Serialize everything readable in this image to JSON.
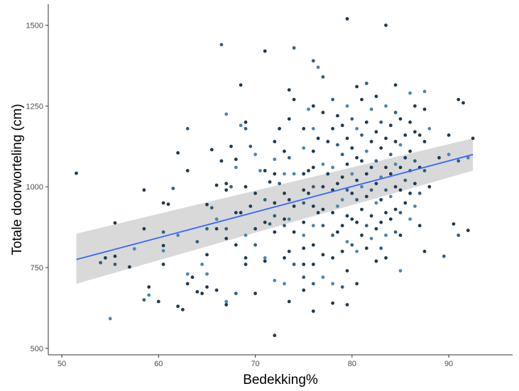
{
  "chart_data": {
    "type": "scatter",
    "title": "",
    "xlabel": "Bedekking%",
    "ylabel": "Totale doorworteling (cm)",
    "xlim": [
      48.6,
      96.6
    ],
    "ylim": [
      480,
      1565
    ],
    "x_ticks": [
      50,
      60,
      70,
      80,
      90
    ],
    "y_ticks": [
      500,
      750,
      1000,
      1250,
      1500
    ],
    "grid": false,
    "legend": "none",
    "colors": {
      "point_dark": "#1f3a4d",
      "point_mid": "#2f5f80",
      "point_light": "#4a86b0",
      "trend_line": "#3366ff",
      "confidence_band": "#d9d9d9",
      "axis": "#333333"
    },
    "trend": {
      "method": "linear",
      "x": [
        51.5,
        92.5
      ],
      "y": [
        775,
        1100
      ],
      "ci_lower": [
        700,
        1050
      ],
      "ci_upper": [
        855,
        1150
      ]
    },
    "points": [
      [
        51.5,
        1042
      ],
      [
        54,
        765
      ],
      [
        54.5,
        780
      ],
      [
        55,
        592
      ],
      [
        55.5,
        888
      ],
      [
        55.5,
        785
      ],
      [
        55.5,
        760
      ],
      [
        57,
        752
      ],
      [
        57.5,
        808
      ],
      [
        58.5,
        990
      ],
      [
        58.5,
        870
      ],
      [
        58.5,
        650
      ],
      [
        59,
        690
      ],
      [
        59,
        665
      ],
      [
        60,
        645
      ],
      [
        60.5,
        950
      ],
      [
        60.5,
        860
      ],
      [
        60.5,
        818
      ],
      [
        60.5,
        802
      ],
      [
        60.5,
        760
      ],
      [
        61,
        946
      ],
      [
        61.5,
        995
      ],
      [
        62,
        1105
      ],
      [
        62,
        850
      ],
      [
        62,
        630
      ],
      [
        62.5,
        620
      ],
      [
        63,
        1180
      ],
      [
        63,
        1050
      ],
      [
        63,
        730
      ],
      [
        63,
        700
      ],
      [
        63.5,
        720
      ],
      [
        64,
        830
      ],
      [
        64,
        675
      ],
      [
        64.5,
        760
      ],
      [
        64.5,
        670
      ],
      [
        65,
        945
      ],
      [
        65,
        870
      ],
      [
        65,
        790
      ],
      [
        65,
        730
      ],
      [
        65,
        690
      ],
      [
        65.5,
        1115
      ],
      [
        65.5,
        935
      ],
      [
        66,
        1005
      ],
      [
        66,
        900
      ],
      [
        66,
        870
      ],
      [
        66,
        680
      ],
      [
        66.5,
        1440
      ],
      [
        66.5,
        1080
      ],
      [
        67,
        1225
      ],
      [
        67,
        1010
      ],
      [
        67,
        990
      ],
      [
        67,
        870
      ],
      [
        67,
        840
      ],
      [
        67,
        645
      ],
      [
        67,
        635
      ],
      [
        67.5,
        1125
      ],
      [
        67.5,
        1000
      ],
      [
        68,
        1085
      ],
      [
        68,
        1060
      ],
      [
        68,
        920
      ],
      [
        68,
        820
      ],
      [
        68,
        670
      ],
      [
        68.5,
        1315
      ],
      [
        68.5,
        1190
      ],
      [
        68.5,
        920
      ],
      [
        69,
        1200
      ],
      [
        69,
        1180
      ],
      [
        69,
        1000
      ],
      [
        69,
        850
      ],
      [
        69,
        780
      ],
      [
        69,
        760
      ],
      [
        69.5,
        1125
      ],
      [
        69.5,
        940
      ],
      [
        70,
        1100
      ],
      [
        70,
        980
      ],
      [
        70,
        870
      ],
      [
        70,
        820
      ],
      [
        70,
        670
      ],
      [
        70.5,
        1050
      ],
      [
        71,
        1420
      ],
      [
        71,
        1050
      ],
      [
        71,
        960
      ],
      [
        71,
        890
      ],
      [
        71,
        780
      ],
      [
        71,
        770
      ],
      [
        71.5,
        1015
      ],
      [
        71.5,
        885
      ],
      [
        72,
        1140
      ],
      [
        72,
        1085
      ],
      [
        72,
        1040
      ],
      [
        72,
        950
      ],
      [
        72,
        910
      ],
      [
        72,
        860
      ],
      [
        72,
        710
      ],
      [
        72,
        540
      ],
      [
        72.5,
        1180
      ],
      [
        72.5,
        1010
      ],
      [
        73,
        1110
      ],
      [
        73,
        1040
      ],
      [
        73,
        980
      ],
      [
        73,
        900
      ],
      [
        73,
        880
      ],
      [
        73,
        780
      ],
      [
        73,
        700
      ],
      [
        73.5,
        1300
      ],
      [
        73.5,
        1210
      ],
      [
        73.5,
        1090
      ],
      [
        73.5,
        960
      ],
      [
        73.5,
        900
      ],
      [
        73.5,
        800
      ],
      [
        73.5,
        645
      ],
      [
        74,
        1430
      ],
      [
        74,
        1270
      ],
      [
        74,
        1040
      ],
      [
        74,
        940
      ],
      [
        74,
        860
      ],
      [
        74,
        760
      ],
      [
        75,
        1180
      ],
      [
        75,
        1120
      ],
      [
        75,
        1040
      ],
      [
        75,
        990
      ],
      [
        75,
        950
      ],
      [
        75,
        890
      ],
      [
        75,
        850
      ],
      [
        75,
        810
      ],
      [
        75,
        760
      ],
      [
        75,
        720
      ],
      [
        75,
        680
      ],
      [
        75.5,
        1240
      ],
      [
        75.5,
        1050
      ],
      [
        75.5,
        980
      ],
      [
        76,
        1390
      ],
      [
        76,
        1250
      ],
      [
        76,
        1180
      ],
      [
        76,
        1110
      ],
      [
        76,
        1060
      ],
      [
        76,
        1000
      ],
      [
        76,
        940
      ],
      [
        76,
        880
      ],
      [
        76,
        820
      ],
      [
        76,
        760
      ],
      [
        76,
        700
      ],
      [
        76,
        615
      ],
      [
        76.5,
        1370
      ],
      [
        76.5,
        1150
      ],
      [
        76.5,
        920
      ],
      [
        77,
        1340
      ],
      [
        77,
        1230
      ],
      [
        77,
        1070
      ],
      [
        77,
        1000
      ],
      [
        77,
        930
      ],
      [
        77,
        880
      ],
      [
        77,
        790
      ],
      [
        77,
        720
      ],
      [
        77.5,
        1140
      ],
      [
        77.5,
        1040
      ],
      [
        78,
        1270
      ],
      [
        78,
        1180
      ],
      [
        78,
        1060
      ],
      [
        78,
        990
      ],
      [
        78,
        920
      ],
      [
        78,
        850
      ],
      [
        78,
        780
      ],
      [
        78,
        700
      ],
      [
        78,
        640
      ],
      [
        78.5,
        1220
      ],
      [
        78.5,
        1130
      ],
      [
        78.5,
        1010
      ],
      [
        78.5,
        940
      ],
      [
        78.5,
        860
      ],
      [
        79,
        1190
      ],
      [
        79,
        1100
      ],
      [
        79,
        1030
      ],
      [
        79,
        960
      ],
      [
        79,
        880
      ],
      [
        79,
        800
      ],
      [
        79,
        690
      ],
      [
        79.5,
        1520
      ],
      [
        79.5,
        1250
      ],
      [
        79.5,
        1150
      ],
      [
        79.5,
        1070
      ],
      [
        79.5,
        990
      ],
      [
        79.5,
        910
      ],
      [
        79.5,
        830
      ],
      [
        79.5,
        740
      ],
      [
        79.5,
        635
      ],
      [
        80,
        1210
      ],
      [
        80,
        1120
      ],
      [
        80,
        1040
      ],
      [
        80,
        980
      ],
      [
        80,
        900
      ],
      [
        80,
        820
      ],
      [
        80.5,
        1310
      ],
      [
        80.5,
        1180
      ],
      [
        80.5,
        1090
      ],
      [
        80.5,
        1020
      ],
      [
        80.5,
        960
      ],
      [
        80.5,
        890
      ],
      [
        80.5,
        800
      ],
      [
        80.5,
        700
      ],
      [
        81,
        1270
      ],
      [
        81,
        1160
      ],
      [
        81,
        1080
      ],
      [
        81,
        1000
      ],
      [
        81,
        930
      ],
      [
        81,
        850
      ],
      [
        81.5,
        1320
      ],
      [
        81.5,
        1200
      ],
      [
        81.5,
        1110
      ],
      [
        81.5,
        1040
      ],
      [
        81.5,
        970
      ],
      [
        81.5,
        880
      ],
      [
        81.5,
        810
      ],
      [
        82,
        1240
      ],
      [
        82,
        1140
      ],
      [
        82,
        1060
      ],
      [
        82,
        990
      ],
      [
        82,
        910
      ],
      [
        82,
        840
      ],
      [
        82.5,
        1280
      ],
      [
        82.5,
        1170
      ],
      [
        82.5,
        1080
      ],
      [
        82.5,
        1010
      ],
      [
        82.5,
        950
      ],
      [
        82.5,
        870
      ],
      [
        82.5,
        770
      ],
      [
        83,
        1200
      ],
      [
        83,
        1120
      ],
      [
        83,
        1030
      ],
      [
        83,
        960
      ],
      [
        83,
        890
      ],
      [
        83,
        810
      ],
      [
        83.5,
        1500
      ],
      [
        83.5,
        1250
      ],
      [
        83.5,
        1150
      ],
      [
        83.5,
        1060
      ],
      [
        83.5,
        990
      ],
      [
        83.5,
        920
      ],
      [
        83.5,
        850
      ],
      [
        83.5,
        780
      ],
      [
        84,
        1190
      ],
      [
        84,
        1100
      ],
      [
        84,
        1040
      ],
      [
        84,
        970
      ],
      [
        84,
        900
      ],
      [
        84.5,
        1315
      ],
      [
        84.5,
        1230
      ],
      [
        84.5,
        1140
      ],
      [
        84.5,
        1070
      ],
      [
        84.5,
        1000
      ],
      [
        84.5,
        930
      ],
      [
        84.5,
        860
      ],
      [
        85,
        1210
      ],
      [
        85,
        1130
      ],
      [
        85,
        1060
      ],
      [
        85,
        990
      ],
      [
        85,
        920
      ],
      [
        85,
        850
      ],
      [
        85,
        740
      ],
      [
        85.5,
        1160
      ],
      [
        85.5,
        1090
      ],
      [
        85.5,
        1020
      ],
      [
        85.5,
        950
      ],
      [
        86,
        1290
      ],
      [
        86,
        1200
      ],
      [
        86,
        1110
      ],
      [
        86,
        1050
      ],
      [
        86,
        980
      ],
      [
        86,
        900
      ],
      [
        86.5,
        1250
      ],
      [
        86.5,
        1170
      ],
      [
        86.5,
        1080
      ],
      [
        86.5,
        1010
      ],
      [
        86.5,
        940
      ],
      [
        87,
        1160
      ],
      [
        87,
        1060
      ],
      [
        87,
        980
      ],
      [
        87,
        880
      ],
      [
        87.5,
        1295
      ],
      [
        87.5,
        1240
      ],
      [
        87.5,
        1140
      ],
      [
        87.5,
        1050
      ],
      [
        87.5,
        800
      ],
      [
        88,
        1180
      ],
      [
        88,
        1000
      ],
      [
        89,
        1090
      ],
      [
        89.5,
        785
      ],
      [
        90,
        1160
      ],
      [
        90,
        1100
      ],
      [
        90.5,
        885
      ],
      [
        91,
        1270
      ],
      [
        91,
        1080
      ],
      [
        91.5,
        1260
      ],
      [
        92,
        1090
      ],
      [
        92,
        865
      ],
      [
        92.5,
        1150
      ],
      [
        91,
        850
      ]
    ]
  }
}
